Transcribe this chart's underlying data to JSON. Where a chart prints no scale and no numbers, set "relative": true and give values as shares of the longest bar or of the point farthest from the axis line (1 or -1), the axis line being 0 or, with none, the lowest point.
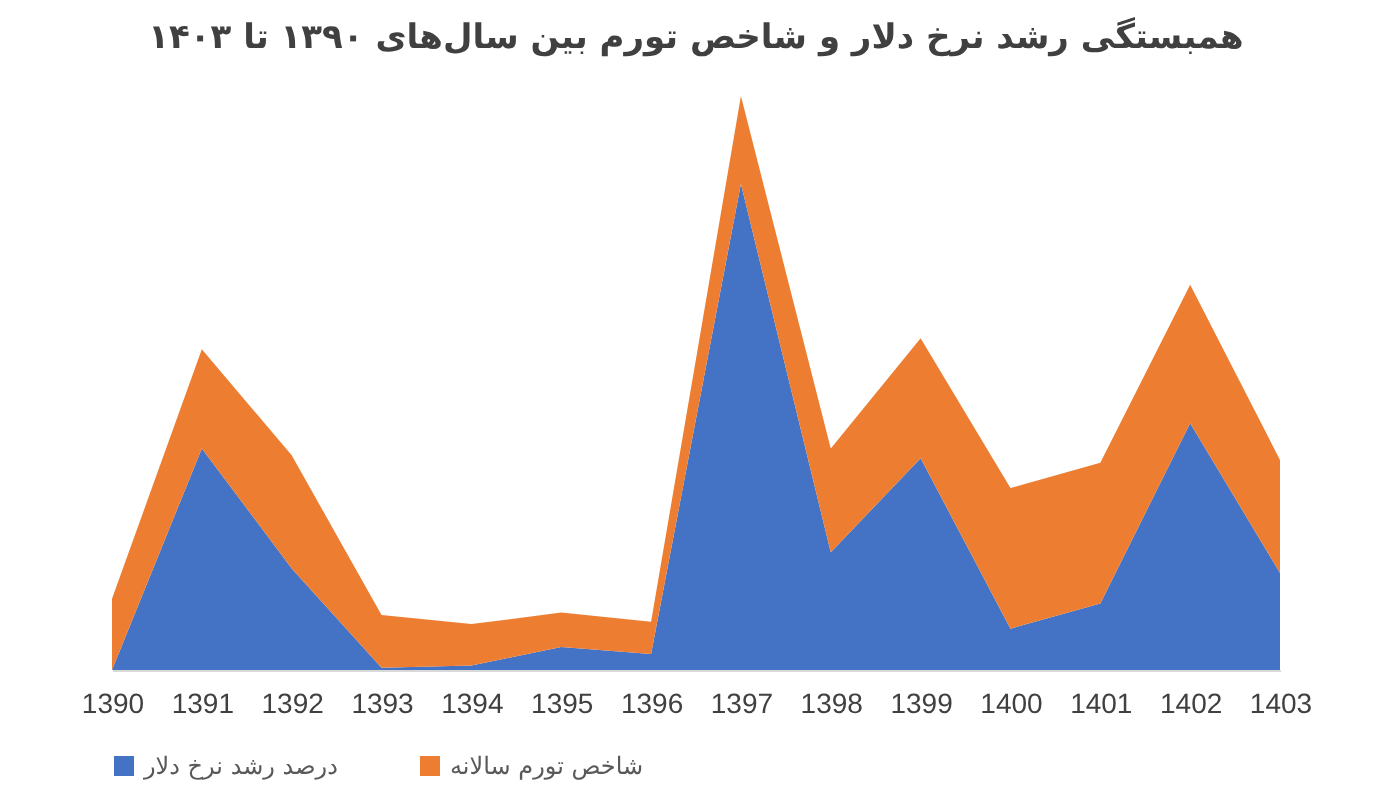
{
  "chart_data": {
    "type": "area",
    "title": "همبستگی رشد نرخ دلار و شاخص تورم بین سال‌های ۱۳۹۰ تا ۱۴۰۳",
    "relative": true,
    "stacked": true,
    "legend": "bottom",
    "grid": false,
    "categories": [
      "1390",
      "1391",
      "1392",
      "1393",
      "1394",
      "1395",
      "1396",
      "1397",
      "1398",
      "1399",
      "1400",
      "1401",
      "1402",
      "1403"
    ],
    "series": [
      {
        "name": "درصد رشد نرخ دلار",
        "color": "#4472c4",
        "values": [
          0,
          0.386,
          0.177,
          0.004,
          0.008,
          0.04,
          0.028,
          0.847,
          0.205,
          0.369,
          0.072,
          0.116,
          0.43,
          0.169
        ]
      },
      {
        "name": "شاخص تورم سالانه",
        "color": "#ed7d31",
        "values": [
          0.124,
          0.173,
          0.197,
          0.092,
          0.072,
          0.06,
          0.056,
          0.153,
          0.181,
          0.209,
          0.245,
          0.245,
          0.241,
          0.197
        ]
      }
    ]
  }
}
